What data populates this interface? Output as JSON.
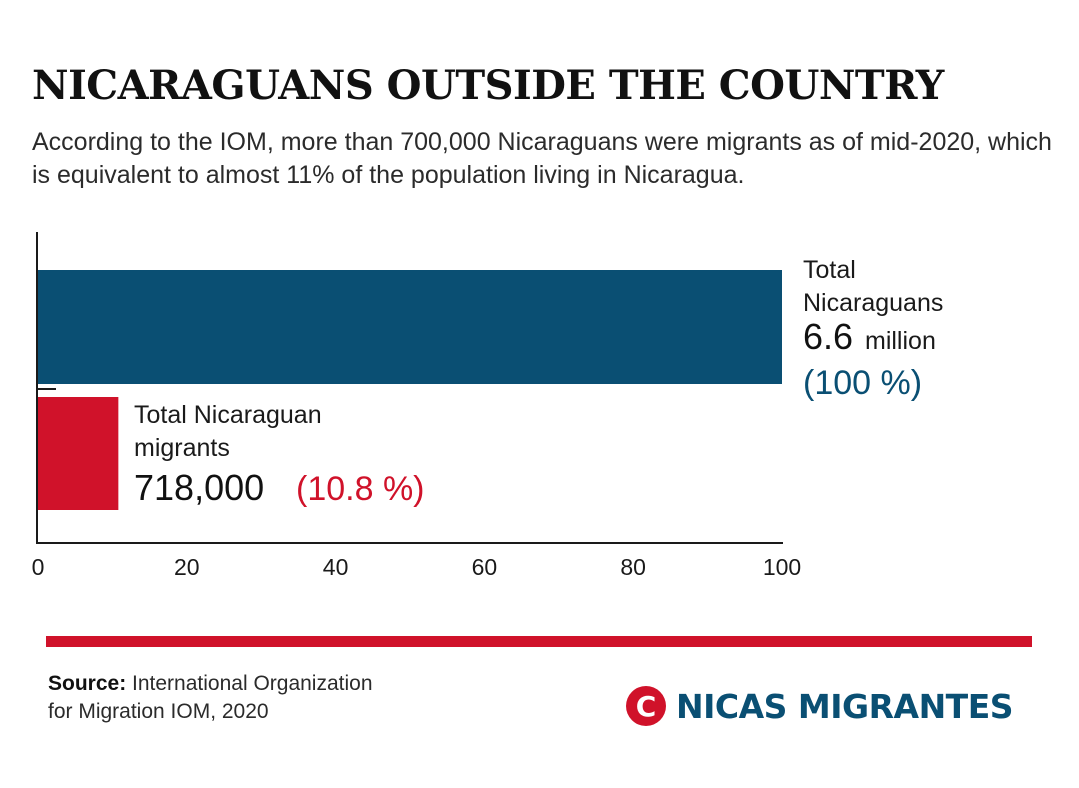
{
  "header": {
    "title": "NICARAGUANS OUTSIDE THE COUNTRY",
    "subtitle": "According to the IOM, more than 700,000 Nicaraguans were migrants as of mid-2020, which is equivalent to almost 11% of the population living in Nicaragua."
  },
  "colors": {
    "total_bar": "#0a4f73",
    "migrants_bar": "#d0122a",
    "rule": "#d0122a",
    "axis": "#1a1a1a"
  },
  "chart_data": {
    "type": "bar",
    "orientation": "horizontal",
    "xlim": [
      0,
      100
    ],
    "xticks": [
      0,
      20,
      40,
      60,
      80,
      100
    ],
    "grid": false,
    "bars": [
      {
        "value": 100,
        "label_lines": [
          "Total",
          "Nicaraguans"
        ],
        "figure": "6.6",
        "unit": "million",
        "percent": "(100 %)",
        "color": "#0a4f73"
      },
      {
        "value": 10.8,
        "label_lines": [
          "Total Nicaraguan",
          "migrants"
        ],
        "figure": "718,000",
        "unit": "",
        "percent": "(10.8 %)",
        "color": "#d0122a"
      }
    ]
  },
  "footer": {
    "source_label": "Source:",
    "source_line1": " International Organization",
    "source_line2": "for Migration IOM, 2020",
    "logo_glyph": "C",
    "logo_text": "NICAS MIGRANTES",
    "logo_color": "#d0122a",
    "logo_text_color": "#0a4f73"
  }
}
